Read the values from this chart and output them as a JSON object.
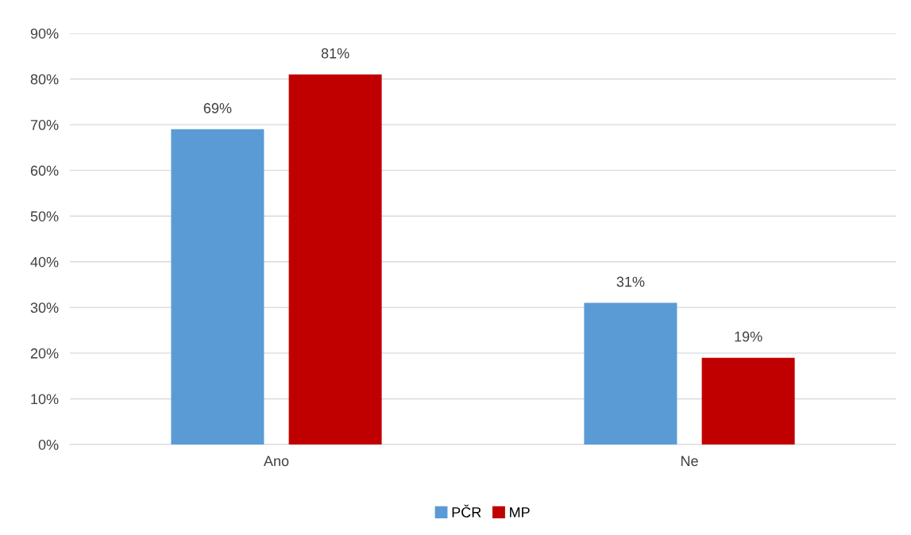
{
  "chart_data": {
    "type": "bar",
    "categories": [
      "Ano",
      "Ne"
    ],
    "series": [
      {
        "name": "PČR",
        "color": "#5b9bd5",
        "values": [
          69,
          31
        ],
        "value_labels": [
          "69%",
          "31%"
        ]
      },
      {
        "name": "MP",
        "color": "#c00000",
        "values": [
          81,
          19
        ],
        "value_labels": [
          "81%",
          "19%"
        ]
      }
    ],
    "ylim": [
      0,
      90
    ],
    "yticks": [
      {
        "value": 0,
        "label": "0%"
      },
      {
        "value": 10,
        "label": "10%"
      },
      {
        "value": 20,
        "label": "20%"
      },
      {
        "value": 30,
        "label": "30%"
      },
      {
        "value": 40,
        "label": "40%"
      },
      {
        "value": 50,
        "label": "50%"
      },
      {
        "value": 60,
        "label": "60%"
      },
      {
        "value": 70,
        "label": "70%"
      },
      {
        "value": 80,
        "label": "80%"
      },
      {
        "value": 90,
        "label": "90%"
      }
    ],
    "grid": "y",
    "legend": "bottom"
  }
}
